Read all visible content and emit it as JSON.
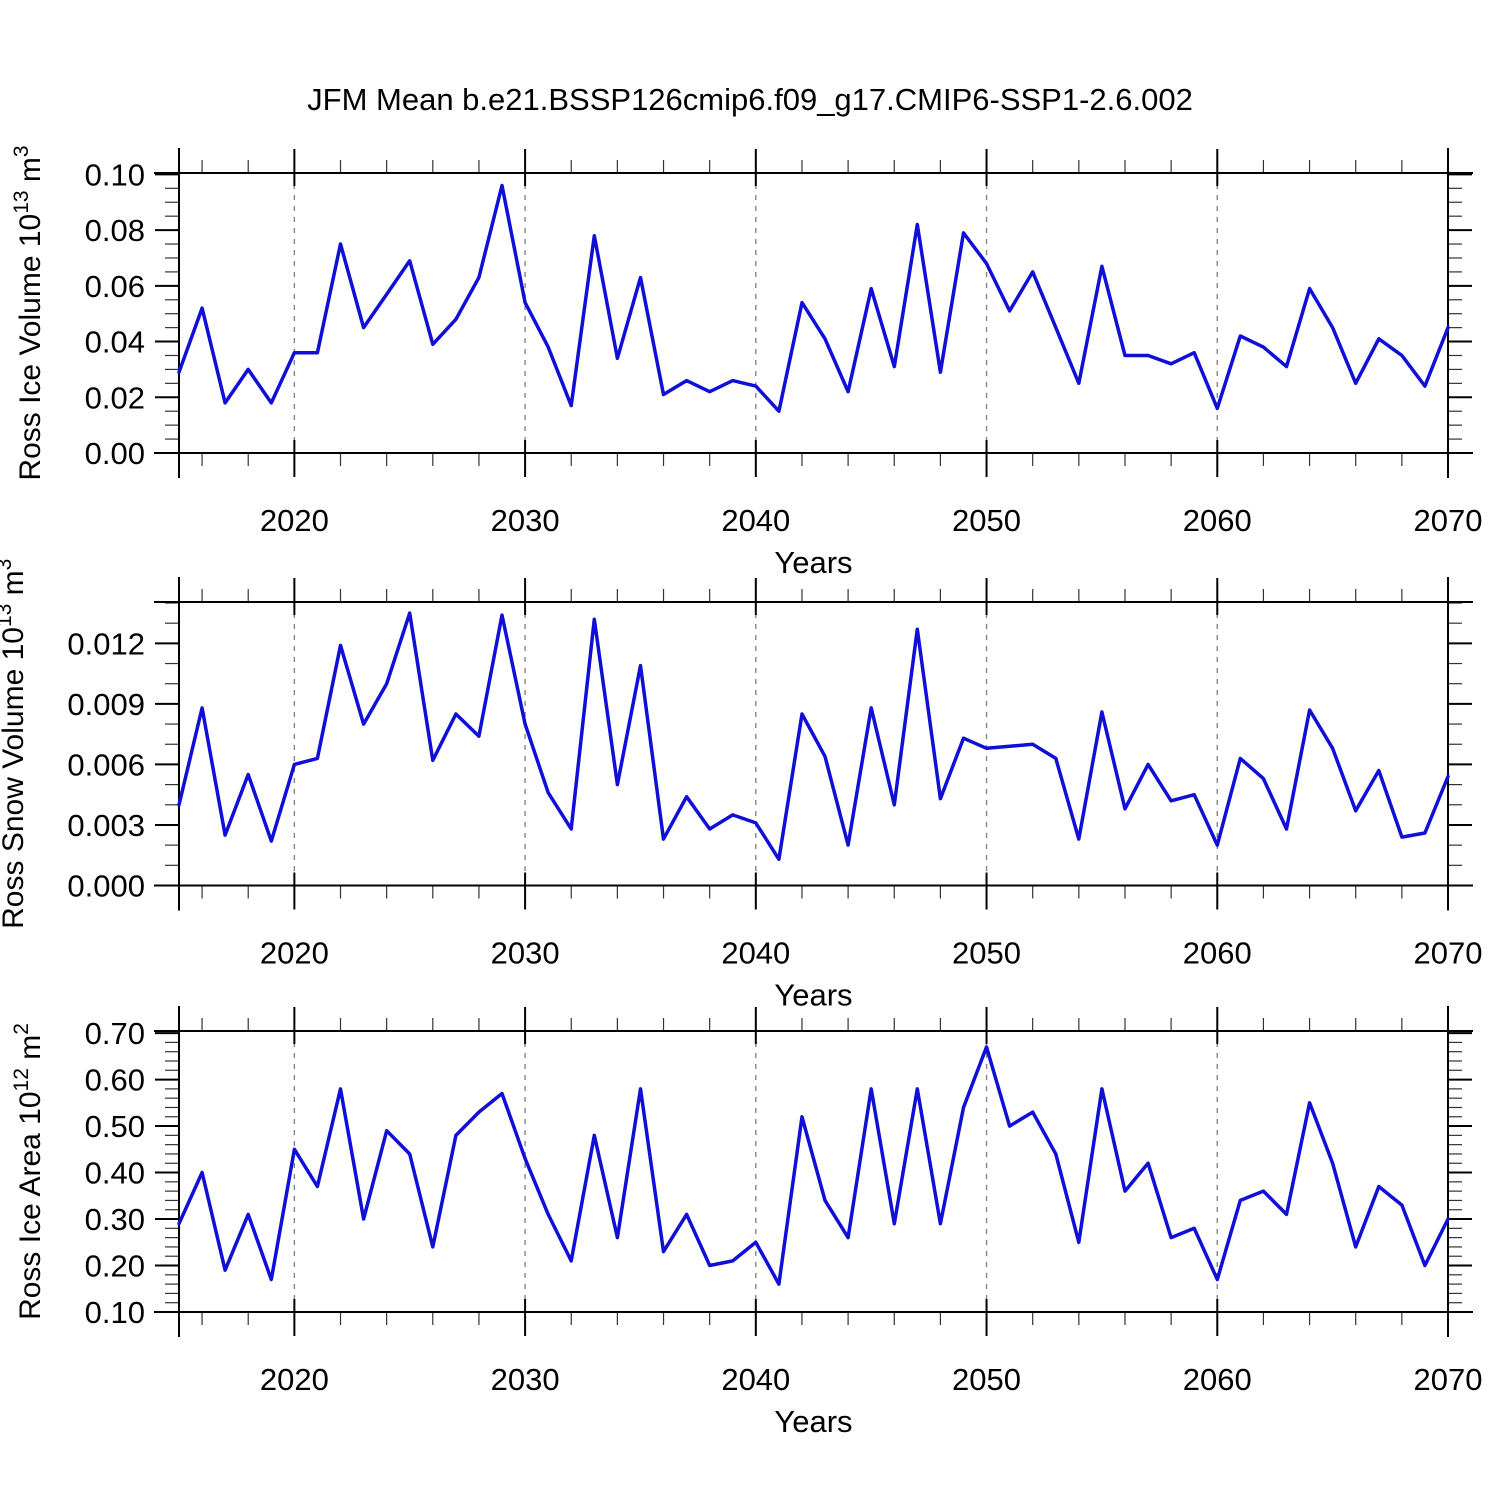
{
  "title": "JFM Mean b.e21.BSSP126cmip6.f09_g17.CMIP6-SSP1-2.6.002",
  "style": {
    "line_color": "#0f0fd8",
    "grid_color": "#848484",
    "axis_color": "#000000",
    "background": "#ffffff"
  },
  "x_axis": {
    "label": "Years",
    "tick_values": [
      2020,
      2030,
      2040,
      2050,
      2060,
      2070
    ],
    "tick_labels": [
      "2020",
      "2030",
      "2040",
      "2050",
      "2060",
      "2070"
    ],
    "minor_step": 2,
    "range": [
      2015,
      2070
    ],
    "grid_years": [
      2020,
      2030,
      2040,
      2050,
      2060
    ]
  },
  "chart_data": [
    {
      "type": "line",
      "name": "ross-ice-volume",
      "title": "",
      "ylabel": "Ross Ice Volume 10^13 m^3",
      "ylabel_parts": [
        {
          "t": "Ross Ice Volume 10"
        },
        {
          "t": "13",
          "sup": true
        },
        {
          "t": " m"
        },
        {
          "t": "3",
          "sup": true
        }
      ],
      "xlabel": "Years",
      "xlim": [
        2015,
        2070
      ],
      "ylim": [
        0.0,
        0.1005
      ],
      "ytick_values": [
        0.0,
        0.02,
        0.04,
        0.06,
        0.08,
        0.1
      ],
      "ytick_labels": [
        "0.00",
        "0.02",
        "0.04",
        "0.06",
        "0.08",
        "0.10"
      ],
      "y_minor_step": 0.005,
      "grid": "dashed-vertical-decades",
      "legend": "none",
      "x": [
        2015,
        2016,
        2017,
        2018,
        2019,
        2020,
        2021,
        2022,
        2023,
        2024,
        2025,
        2026,
        2027,
        2028,
        2029,
        2030,
        2031,
        2032,
        2033,
        2034,
        2035,
        2036,
        2037,
        2038,
        2039,
        2040,
        2041,
        2042,
        2043,
        2044,
        2045,
        2046,
        2047,
        2048,
        2049,
        2050,
        2051,
        2052,
        2053,
        2054,
        2055,
        2056,
        2057,
        2058,
        2059,
        2060,
        2061,
        2062,
        2063,
        2064,
        2065,
        2066,
        2067,
        2068,
        2069,
        2070
      ],
      "values": [
        0.029,
        0.052,
        0.018,
        0.03,
        0.018,
        0.036,
        0.036,
        0.075,
        0.045,
        0.057,
        0.069,
        0.039,
        0.048,
        0.063,
        0.096,
        0.054,
        0.038,
        0.017,
        0.078,
        0.034,
        0.063,
        0.021,
        0.026,
        0.022,
        0.026,
        0.024,
        0.015,
        0.054,
        0.041,
        0.022,
        0.059,
        0.031,
        0.082,
        0.029,
        0.079,
        0.068,
        0.051,
        0.065,
        0.045,
        0.025,
        0.067,
        0.035,
        0.035,
        0.032,
        0.036,
        0.016,
        0.042,
        0.038,
        0.031,
        0.059,
        0.045,
        0.025,
        0.041,
        0.035,
        0.024,
        0.045
      ]
    },
    {
      "type": "line",
      "name": "ross-snow-volume",
      "title": "",
      "ylabel": "Ross Snow Volume 10^13 m^3",
      "ylabel_parts": [
        {
          "t": "Ross Snow Volume 10"
        },
        {
          "t": "13",
          "sup": true
        },
        {
          "t": " m"
        },
        {
          "t": "3",
          "sup": true
        }
      ],
      "xlabel": "Years",
      "xlim": [
        2015,
        2070
      ],
      "ylim": [
        0.0,
        0.01405
      ],
      "ytick_values": [
        0.0,
        0.003,
        0.006,
        0.009,
        0.012
      ],
      "ytick_labels": [
        "0.000",
        "0.003",
        "0.006",
        "0.009",
        "0.012"
      ],
      "y_minor_step": 0.001,
      "grid": "dashed-vertical-decades",
      "legend": "none",
      "x": [
        2015,
        2016,
        2017,
        2018,
        2019,
        2020,
        2021,
        2022,
        2023,
        2024,
        2025,
        2026,
        2027,
        2028,
        2029,
        2030,
        2031,
        2032,
        2033,
        2034,
        2035,
        2036,
        2037,
        2038,
        2039,
        2040,
        2041,
        2042,
        2043,
        2044,
        2045,
        2046,
        2047,
        2048,
        2049,
        2050,
        2051,
        2052,
        2053,
        2054,
        2055,
        2056,
        2057,
        2058,
        2059,
        2060,
        2061,
        2062,
        2063,
        2064,
        2065,
        2066,
        2067,
        2068,
        2069,
        2070
      ],
      "values": [
        0.004,
        0.0088,
        0.0025,
        0.0055,
        0.0022,
        0.006,
        0.0063,
        0.0119,
        0.008,
        0.01,
        0.0135,
        0.0062,
        0.0085,
        0.0074,
        0.0134,
        0.008,
        0.0046,
        0.0028,
        0.0132,
        0.005,
        0.0109,
        0.0023,
        0.0044,
        0.0028,
        0.0035,
        0.0031,
        0.0013,
        0.0085,
        0.0064,
        0.002,
        0.0088,
        0.004,
        0.0127,
        0.0043,
        0.0073,
        0.0068,
        0.0069,
        0.007,
        0.0063,
        0.0023,
        0.0086,
        0.0038,
        0.006,
        0.0042,
        0.0045,
        0.002,
        0.0063,
        0.0053,
        0.0028,
        0.0087,
        0.0068,
        0.0037,
        0.0057,
        0.0024,
        0.0026,
        0.0054
      ]
    },
    {
      "type": "line",
      "name": "ross-ice-area",
      "title": "",
      "ylabel": "Ross Ice Area 10^12 m^2",
      "ylabel_parts": [
        {
          "t": "Ross Ice Area 10"
        },
        {
          "t": "12",
          "sup": true
        },
        {
          "t": " m"
        },
        {
          "t": "2",
          "sup": true
        }
      ],
      "xlabel": "Years",
      "xlim": [
        2015,
        2070
      ],
      "ylim": [
        0.1,
        0.7045
      ],
      "ytick_values": [
        0.1,
        0.2,
        0.3,
        0.4,
        0.5,
        0.6,
        0.7
      ],
      "ytick_labels": [
        "0.10",
        "0.20",
        "0.30",
        "0.40",
        "0.50",
        "0.60",
        "0.70"
      ],
      "y_minor_step": 0.02,
      "grid": "dashed-vertical-decades",
      "legend": "none",
      "x": [
        2015,
        2016,
        2017,
        2018,
        2019,
        2020,
        2021,
        2022,
        2023,
        2024,
        2025,
        2026,
        2027,
        2028,
        2029,
        2030,
        2031,
        2032,
        2033,
        2034,
        2035,
        2036,
        2037,
        2038,
        2039,
        2040,
        2041,
        2042,
        2043,
        2044,
        2045,
        2046,
        2047,
        2048,
        2049,
        2050,
        2051,
        2052,
        2053,
        2054,
        2055,
        2056,
        2057,
        2058,
        2059,
        2060,
        2061,
        2062,
        2063,
        2064,
        2065,
        2066,
        2067,
        2068,
        2069,
        2070
      ],
      "values": [
        0.29,
        0.4,
        0.19,
        0.31,
        0.17,
        0.45,
        0.37,
        0.58,
        0.3,
        0.49,
        0.44,
        0.24,
        0.48,
        0.53,
        0.57,
        0.43,
        0.31,
        0.21,
        0.48,
        0.26,
        0.58,
        0.23,
        0.31,
        0.2,
        0.21,
        0.25,
        0.16,
        0.52,
        0.34,
        0.26,
        0.58,
        0.29,
        0.58,
        0.29,
        0.54,
        0.67,
        0.5,
        0.53,
        0.44,
        0.25,
        0.58,
        0.36,
        0.42,
        0.26,
        0.28,
        0.17,
        0.34,
        0.36,
        0.31,
        0.55,
        0.42,
        0.24,
        0.37,
        0.33,
        0.2,
        0.3
      ]
    }
  ]
}
